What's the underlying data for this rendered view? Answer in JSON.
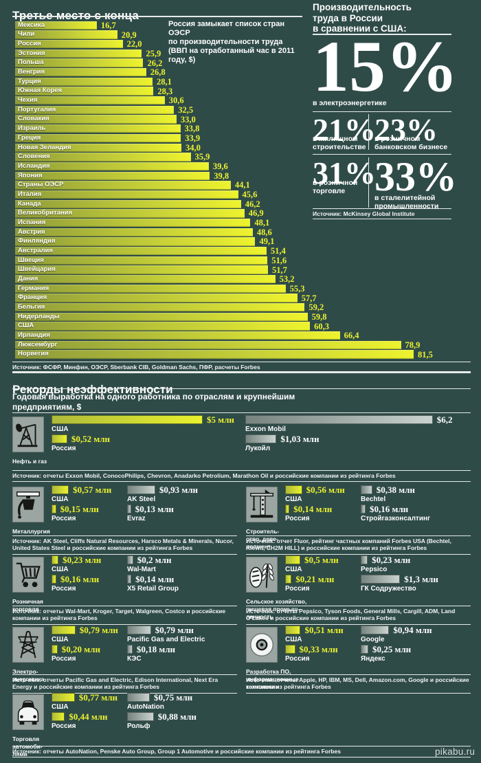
{
  "meta": {
    "watermark": "pikabu.ru"
  },
  "colors": {
    "background": "#2f4b48",
    "bar_yellow_start": "#8e9b3a",
    "bar_yellow_end": "#eef32d",
    "bar_gray_start": "#76847f",
    "bar_gray_end": "#c9d2ce",
    "accent_text_yellow": "#ecf22f",
    "text_white": "#ffffff",
    "icon_tile": "#9ba5a1"
  },
  "top_chart": {
    "title": "Третье место с конца",
    "annotation": "Россия замыкает список стран ОЭСР\nпо производительности труда\n(ВВП на отработанный час в 2011 году, $)",
    "source": "Источник: ФСФР, Минфин, ОЭСР, Sberbank CIB, Goldman Sachs, ПФР, расчеты Forbes"
  },
  "right_panel": {
    "title": "Производительность\nтруда в России\nв сравнении с США:",
    "stats": [
      {
        "value": "15%",
        "label": "в электроэнергетике"
      },
      {
        "value": "21%",
        "label": "в жилищном\nстроительстве"
      },
      {
        "value": "23%",
        "label": "в розничном\nбанковском бизнесе"
      },
      {
        "value": "31%",
        "label": "в розничной\nторговле"
      },
      {
        "value": "33%",
        "label": "в сталелитейной\nпромышленности"
      }
    ],
    "source": "Источник: McKinsey Global Institute"
  },
  "bottom": {
    "title": "Рекорды неэффективности",
    "subtitle": "Годовая выработка на одного работника по отраслям и крупнейшим\nпредприятиям, $"
  },
  "chart_data": [
    {
      "type": "bar",
      "orientation": "horizontal",
      "title": "Третье место с конца",
      "subtitle": "ВВП на отработанный час в 2011 году, $",
      "xlim": [
        0,
        85
      ],
      "grid": false,
      "categories": [
        "Мексика",
        "Чили",
        "Россия",
        "Эстония",
        "Польша",
        "Венгрия",
        "Турция",
        "Южная Корея",
        "Чехия",
        "Португалия",
        "Словакия",
        "Израиль",
        "Греция",
        "Новая Зеландия",
        "Словения",
        "Исландия",
        "Япония",
        "Страны ОЭСР",
        "Италия",
        "Канада",
        "Великобритания",
        "Испания",
        "Австрия",
        "Финляндия",
        "Австралия",
        "Швеция",
        "Швейцария",
        "Дания",
        "Германия",
        "Франция",
        "Бельгия",
        "Нидерланды",
        "США",
        "Ирландия",
        "Люксембург",
        "Норвегия"
      ],
      "values": [
        16.7,
        20.9,
        22.0,
        25.9,
        26.2,
        26.8,
        28.1,
        28.3,
        30.6,
        32.5,
        33.0,
        33.8,
        33.9,
        34.0,
        35.9,
        39.6,
        39.8,
        44.1,
        45.6,
        46.2,
        46.9,
        48.1,
        48.6,
        49.1,
        51.4,
        51.6,
        51.7,
        53.2,
        55.3,
        57.7,
        59.2,
        59.8,
        60.3,
        66.4,
        78.9,
        81.5
      ]
    },
    {
      "type": "bar",
      "title": "Рекорды неэффективности",
      "unit": "млн $ на одного работника в год",
      "groups": [
        {
          "icon": "oil-pump-icon",
          "category": "Нефть и газ",
          "entries": [
            {
              "name": "США",
              "value": 5.0,
              "label": "$5 млн",
              "color": "yellow"
            },
            {
              "name": "Россия",
              "value": 0.52,
              "label": "$0,52 млн",
              "color": "yellow"
            },
            {
              "name": "Exxon Mobil",
              "value": 6.2,
              "label": "$6,2",
              "color": "gray"
            },
            {
              "name": "Лукойл",
              "value": 1.03,
              "label": "$1,03 млн",
              "color": "gray"
            }
          ],
          "source": "Источник: отчеты Exxon Mobil, ConocoPhilips, Chevron, Anadarko Petrolium, Marathon Oil и российские компании из рейтинга Forbes"
        },
        {
          "icon": "metallurgy-icon",
          "category": "Металлургия",
          "entries": [
            {
              "name": "США",
              "value": 0.57,
              "label": "$0,57 млн",
              "color": "yellow"
            },
            {
              "name": "Россия",
              "value": 0.15,
              "label": "$0,15 млн",
              "color": "yellow"
            },
            {
              "name": "AK Steel",
              "value": 0.93,
              "label": "$0,93 млн",
              "color": "gray"
            },
            {
              "name": "Evraz",
              "value": 0.13,
              "label": "$0,13 млн",
              "color": "gray"
            }
          ],
          "source": "Источник: AK Steel, Cliffs Natural Resources, Harsco Metals & Minerals, Nucor, United States Steel и российские компании из рейтинга Forbes"
        },
        {
          "icon": "construction-crane-icon",
          "category": "Строитель-\nство, деве-\nлопмент",
          "entries": [
            {
              "name": "США",
              "value": 0.56,
              "label": "$0,56 млн",
              "color": "yellow"
            },
            {
              "name": "Россия",
              "value": 0.14,
              "label": "$0,14 млн",
              "color": "yellow"
            },
            {
              "name": "Bechtel",
              "value": 0.38,
              "label": "$0,38 млн",
              "color": "gray"
            },
            {
              "name": "Стройгазконсалтинг",
              "value": 0.16,
              "label": "$0,16 млн",
              "color": "gray"
            }
          ],
          "source": "Источник: отчет Fluor, рейтинг частных компаний Forbes USA (Bechtel, Kiewit, CH2M HILL) и российские компании из рейтинга Forbes"
        },
        {
          "icon": "shopping-cart-icon",
          "category": "Розничная\nторговля",
          "entries": [
            {
              "name": "США",
              "value": 0.23,
              "label": "$0,23 млн",
              "color": "yellow"
            },
            {
              "name": "Россия",
              "value": 0.16,
              "label": "$0,16 млн",
              "color": "yellow"
            },
            {
              "name": "Wal-Mart",
              "value": 0.2,
              "label": "$0,2 млн",
              "color": "gray"
            },
            {
              "name": "X5 Retail Group",
              "value": 0.14,
              "label": "$0,14 млн",
              "color": "gray"
            }
          ],
          "source": "Источник: отчеты Wal-Mart, Kroger, Target, Walgreen, Costco и российские компании из рейтинга Forbes"
        },
        {
          "icon": "wheat-bread-icon",
          "category": "Сельское хозяйство,\nпищевая промыш-\nленность",
          "entries": [
            {
              "name": "США",
              "value": 0.5,
              "label": "$0,5 млн",
              "color": "yellow"
            },
            {
              "name": "Россия",
              "value": 0.21,
              "label": "$0,21 млн",
              "color": "yellow"
            },
            {
              "name": "Pepsico",
              "value": 0.23,
              "label": "$0,23 млн",
              "color": "gray"
            },
            {
              "name": "ГК Содружество",
              "value": 1.3,
              "label": "$1,3 млн",
              "color": "gray"
            }
          ],
          "source": "Источник: отчеты Pepsico, Tyson Foods, General Mills, Cargill, ADM, Land O'Lakes и российские компании из рейтинга Forbes"
        },
        {
          "icon": "power-tower-icon",
          "category": "Электро-\nэнергетика",
          "entries": [
            {
              "name": "США",
              "value": 0.79,
              "label": "$0,79 млн",
              "color": "yellow"
            },
            {
              "name": "Россия",
              "value": 0.2,
              "label": "$0,20 млн",
              "color": "yellow"
            },
            {
              "name": "Pacific Gas and Electric",
              "value": 0.79,
              "label": "$0,79 млн",
              "color": "gray"
            },
            {
              "name": "КЭС",
              "value": 0.18,
              "label": "$0,18 млн",
              "color": "gray"
            }
          ],
          "source": "Источник: отчеты Pacific Gas and Electric, Edison International, Next Era Energy и российские компании из рейтинга Forbes"
        },
        {
          "icon": "cd-disc-icon",
          "category": "Разработка ПО,\nинформационные\nтехнологии",
          "entries": [
            {
              "name": "США",
              "value": 0.51,
              "label": "$0,51 млн",
              "color": "yellow"
            },
            {
              "name": "Россия",
              "value": 0.33,
              "label": "$0,33 млн",
              "color": "yellow"
            },
            {
              "name": "Google",
              "value": 0.94,
              "label": "$0,94 млн",
              "color": "gray"
            },
            {
              "name": "Яндекс",
              "value": 0.25,
              "label": "$0,25 млн",
              "color": "gray"
            }
          ],
          "source": "Источник: отчеты Apple, HP, IBM, MS, Dell, Amazon.com, Google и российские компании из рейтинга Forbes"
        },
        {
          "icon": "car-icon",
          "category": "Торговля\nавтомоби-\nлями",
          "entries": [
            {
              "name": "США",
              "value": 0.77,
              "label": "$0,77 млн",
              "color": "yellow"
            },
            {
              "name": "Россия",
              "value": 0.44,
              "label": "$0,44 млн",
              "color": "yellow"
            },
            {
              "name": "AutoNation",
              "value": 0.75,
              "label": "$0,75 млн",
              "color": "gray"
            },
            {
              "name": "Рольф",
              "value": 0.88,
              "label": "$0,88 млн",
              "color": "gray"
            }
          ],
          "source": "Источник: отчеты AutoNation, Penske Auto Group, Group 1 Automotive и российские компании из рейтинга Forbes"
        }
      ]
    }
  ]
}
